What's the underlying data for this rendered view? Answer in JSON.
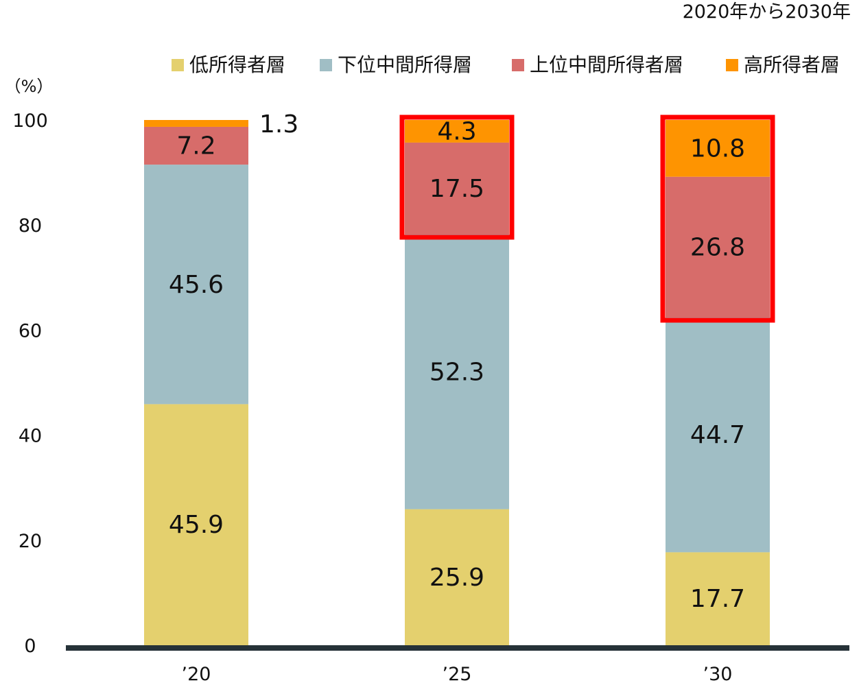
{
  "chart_data": {
    "type": "bar",
    "stacked": true,
    "subtitle": "2020年から2030年",
    "ylabel": "（%）",
    "ylim": [
      0,
      100
    ],
    "yticks": [
      0,
      20,
      40,
      60,
      80,
      100
    ],
    "categories": [
      "’20",
      "’25",
      "’30"
    ],
    "grid": false,
    "legend_position": "top-right",
    "series": [
      {
        "name": "低所得者層",
        "values": [
          45.9,
          25.9,
          17.7
        ],
        "color": "#e4d06e"
      },
      {
        "name": "下位中間所得層",
        "values": [
          45.6,
          52.3,
          44.7
        ],
        "color": "#a0bec5"
      },
      {
        "name": "上位中間所得者層",
        "values": [
          7.2,
          17.5,
          26.8
        ],
        "color": "#d76c6a"
      },
      {
        "name": "高所得者層",
        "values": [
          1.3,
          4.3,
          10.8
        ],
        "color": "#fe9401"
      }
    ],
    "data_labels": [
      [
        "45.9",
        "45.6",
        "7.2",
        "1.3"
      ],
      [
        "25.9",
        "52.3",
        "17.5",
        "4.3"
      ],
      [
        "17.7",
        "44.7",
        "26.8",
        "10.8"
      ]
    ],
    "highlights": [
      {
        "category_index": 1,
        "series_from": 2,
        "series_to": 3,
        "color": "#ff0000"
      },
      {
        "category_index": 2,
        "series_from": 2,
        "series_to": 3,
        "color": "#ff0000"
      }
    ],
    "axis_color": "#263238"
  }
}
